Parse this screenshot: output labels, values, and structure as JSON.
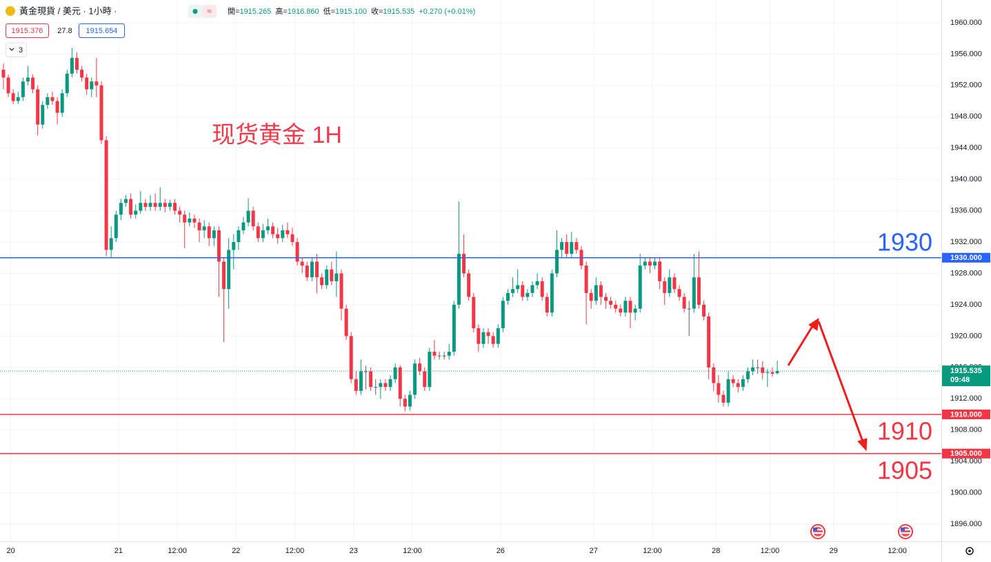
{
  "header": {
    "symbol": "黃金現貨 / 美元 · 1小時 ·",
    "ohlc": [
      {
        "label": "開=",
        "value": "1915.265"
      },
      {
        "label": "高=",
        "value": "1916.860"
      },
      {
        "label": "低=",
        "value": "1915.100"
      },
      {
        "label": "收=",
        "value": "1915.535"
      }
    ],
    "change": "+0.270 (+0.01%)",
    "bid": "1915.376",
    "spread": "27.8",
    "ask": "1915.654",
    "indicator_count": "3"
  },
  "chart_data": {
    "type": "candlestick",
    "annotation": "现货黄金 1H",
    "colors": {
      "up": "#089981",
      "down": "#f23645",
      "flat": "#5d606b"
    },
    "xlim": [
      -24.2,
      168
    ],
    "xticks": [
      {
        "value": -22,
        "label": "20"
      },
      {
        "value": 0,
        "label": "21"
      },
      {
        "value": 12,
        "label": "12:00"
      },
      {
        "value": 24,
        "label": "22"
      },
      {
        "value": 36,
        "label": "12:00"
      },
      {
        "value": 48,
        "label": "23"
      },
      {
        "value": 60,
        "label": "12:00"
      },
      {
        "value": 78,
        "label": "26"
      },
      {
        "value": 97,
        "label": "27"
      },
      {
        "value": 109,
        "label": "12:00"
      },
      {
        "value": 122,
        "label": "28"
      },
      {
        "value": 133,
        "label": "12:00"
      },
      {
        "value": 146,
        "label": "29"
      },
      {
        "value": 159,
        "label": "12:00"
      }
    ],
    "ylim": [
      1893.8,
      1962.9
    ],
    "yticks": [
      {
        "value": 1896,
        "label": "1896.000"
      },
      {
        "value": 1900,
        "label": "1900.000"
      },
      {
        "value": 1904,
        "label": "1904.000"
      },
      {
        "value": 1908,
        "label": "1908.000"
      },
      {
        "value": 1912,
        "label": "1912.000"
      },
      {
        "value": 1916,
        "label": "1916.000"
      },
      {
        "value": 1920,
        "label": "1920.000"
      },
      {
        "value": 1924,
        "label": "1924.000"
      },
      {
        "value": 1928,
        "label": "1928.000"
      },
      {
        "value": 1932,
        "label": "1932.000"
      },
      {
        "value": 1936,
        "label": "1936.000"
      },
      {
        "value": 1940,
        "label": "1940.000"
      },
      {
        "value": 1944,
        "label": "1944.000"
      },
      {
        "value": 1948,
        "label": "1948.000"
      },
      {
        "value": 1952,
        "label": "1952.000"
      },
      {
        "value": 1956,
        "label": "1956.000"
      },
      {
        "value": 1960,
        "label": "1960.000"
      }
    ],
    "grid": true,
    "hlines": [
      {
        "value": 1930,
        "label": "1930.000",
        "annotation": "1930",
        "color": "#2962ff"
      },
      {
        "value": 1910,
        "label": "1910.000",
        "annotation": "1910",
        "color": "#f23645"
      },
      {
        "value": 1905,
        "label": "1905.000",
        "annotation": "1905",
        "color": "#f23645"
      }
    ],
    "last_price": {
      "value": 1915.535,
      "label": "1915.535",
      "countdown": "09:48",
      "color": "#089981"
    },
    "x": [
      -23.5,
      -22.5,
      -21.5,
      -20.5,
      -19.5,
      -18.5,
      -17.5,
      -16.5,
      -15.5,
      -14.5,
      -13.5,
      -12.5,
      -11.5,
      -10.5,
      -9.5,
      -8.5,
      -7.5,
      -6.5,
      -5.5,
      -4.5,
      -3.5,
      -2.5,
      -1.5,
      -0.5,
      0.5,
      1.5,
      2.5,
      3.5,
      4.5,
      5.5,
      6.5,
      7.5,
      8.5,
      9.5,
      10.5,
      11.5,
      12.5,
      13.5,
      14.5,
      15.5,
      16.5,
      17.5,
      18.5,
      19.5,
      20.5,
      21.5,
      22.5,
      23.5,
      24.5,
      25.5,
      26.5,
      27.5,
      28.5,
      29.5,
      30.5,
      31.5,
      32.5,
      33.5,
      34.5,
      35.5,
      36.5,
      37.5,
      38.5,
      39.5,
      40.5,
      41.5,
      42.5,
      43.5,
      44.5,
      45.5,
      46.5,
      47.5,
      48.5,
      49.5,
      50.5,
      51.5,
      52.5,
      53.5,
      54.5,
      55.5,
      56.5,
      57.5,
      58.5,
      59.5,
      60.5,
      61.5,
      62.5,
      63.5,
      64.5,
      65.5,
      66.5,
      67.5,
      68.5,
      69.5,
      70.5,
      71.5,
      72.5,
      73.5,
      74.5,
      75.5,
      76.5,
      77.5,
      78.5,
      79.5,
      80.5,
      81.5,
      82.5,
      83.5,
      84.5,
      85.5,
      86.5,
      87.5,
      88.5,
      89.5,
      90.5,
      91.5,
      92.5,
      93.5,
      94.5,
      95.5,
      96.5,
      97.5,
      98.5,
      99.5,
      100.5,
      101.5,
      102.5,
      103.5,
      104.5,
      105.5,
      106.5,
      107.5,
      108.5,
      109.5,
      110.5,
      111.5,
      112.5,
      113.5,
      114.5,
      115.5,
      116.5,
      117.5,
      118.5,
      119.5,
      120.5,
      121.5,
      122.5,
      123.5,
      124.5,
      125.5,
      126.5,
      127.5,
      128.5,
      129.5,
      130.5,
      131.5,
      132.5,
      133.5,
      134.5
    ],
    "candles": [
      [
        1954.0,
        1954.8,
        1951.5,
        1953.0
      ],
      [
        1953.0,
        1953.4,
        1950.5,
        1951.0
      ],
      [
        1951.0,
        1951.5,
        1949.6,
        1950.0
      ],
      [
        1950.0,
        1951.2,
        1949.6,
        1950.5
      ],
      [
        1950.5,
        1953.0,
        1950.0,
        1952.5
      ],
      [
        1952.5,
        1954.5,
        1952.0,
        1953.0
      ],
      [
        1953.0,
        1953.4,
        1951.0,
        1951.5
      ],
      [
        1951.5,
        1952.0,
        1945.6,
        1947.0
      ],
      [
        1947.0,
        1950.0,
        1946.5,
        1949.5
      ],
      [
        1949.5,
        1951.0,
        1949.0,
        1950.5
      ],
      [
        1950.5,
        1951.2,
        1949.5,
        1950.0
      ],
      [
        1950.0,
        1950.5,
        1947.0,
        1948.5
      ],
      [
        1948.5,
        1951.5,
        1948.0,
        1951.0
      ],
      [
        1951.0,
        1954.0,
        1950.5,
        1953.5
      ],
      [
        1953.5,
        1956.8,
        1953.0,
        1955.5
      ],
      [
        1955.5,
        1956.2,
        1953.5,
        1954.0
      ],
      [
        1954.0,
        1954.5,
        1952.5,
        1953.0
      ],
      [
        1953.0,
        1953.5,
        1950.8,
        1951.5
      ],
      [
        1951.5,
        1953.0,
        1950.5,
        1952.5
      ],
      [
        1952.5,
        1955.5,
        1950.5,
        1952.0
      ],
      [
        1952.0,
        1952.5,
        1944.5,
        1945.0
      ],
      [
        1945.0,
        1945.5,
        1930.2,
        1931.0
      ],
      [
        1931.0,
        1934.0,
        1930.0,
        1932.5
      ],
      [
        1932.5,
        1936.0,
        1932.0,
        1935.5
      ],
      [
        1935.5,
        1937.5,
        1934.8,
        1937.0
      ],
      [
        1937.0,
        1938.0,
        1936.5,
        1937.5
      ],
      [
        1937.5,
        1938.2,
        1935.0,
        1935.5
      ],
      [
        1935.5,
        1936.8,
        1935.0,
        1936.0
      ],
      [
        1936.0,
        1938.5,
        1935.6,
        1937.0
      ],
      [
        1937.0,
        1937.5,
        1936.0,
        1936.5
      ],
      [
        1936.5,
        1938.0,
        1936.0,
        1937.0
      ],
      [
        1937.0,
        1938.2,
        1936.0,
        1936.5
      ],
      [
        1936.5,
        1939.0,
        1936.0,
        1937.0
      ],
      [
        1937.0,
        1937.5,
        1935.8,
        1936.5
      ],
      [
        1936.5,
        1937.4,
        1936.0,
        1937.0
      ],
      [
        1937.0,
        1937.5,
        1935.5,
        1936.0
      ],
      [
        1936.0,
        1936.5,
        1934.5,
        1935.5
      ],
      [
        1935.5,
        1936.0,
        1931.2,
        1934.5
      ],
      [
        1934.5,
        1935.8,
        1934.0,
        1935.0
      ],
      [
        1935.0,
        1935.5,
        1933.8,
        1934.5
      ],
      [
        1934.5,
        1935.0,
        1932.0,
        1933.5
      ],
      [
        1933.5,
        1934.8,
        1932.5,
        1934.0
      ],
      [
        1934.0,
        1934.5,
        1931.5,
        1932.5
      ],
      [
        1932.5,
        1934.0,
        1931.5,
        1933.5
      ],
      [
        1933.5,
        1934.0,
        1925.0,
        1929.5
      ],
      [
        1929.5,
        1930.0,
        1919.2,
        1926.0
      ],
      [
        1926.0,
        1932.5,
        1923.5,
        1931.0
      ],
      [
        1931.0,
        1933.0,
        1928.5,
        1932.0
      ],
      [
        1932.0,
        1934.0,
        1931.0,
        1933.5
      ],
      [
        1933.5,
        1935.2,
        1933.0,
        1934.5
      ],
      [
        1934.5,
        1937.6,
        1934.0,
        1936.0
      ],
      [
        1936.0,
        1936.5,
        1933.5,
        1934.0
      ],
      [
        1934.0,
        1934.5,
        1932.0,
        1932.5
      ],
      [
        1932.5,
        1934.3,
        1932.0,
        1933.5
      ],
      [
        1933.5,
        1935.0,
        1933.0,
        1934.0
      ],
      [
        1934.0,
        1934.5,
        1932.5,
        1933.0
      ],
      [
        1933.0,
        1933.8,
        1931.8,
        1932.5
      ],
      [
        1932.5,
        1934.2,
        1932.0,
        1933.5
      ],
      [
        1933.5,
        1934.5,
        1932.5,
        1933.0
      ],
      [
        1933.0,
        1933.8,
        1931.5,
        1932.0
      ],
      [
        1932.0,
        1932.5,
        1929.0,
        1929.5
      ],
      [
        1929.5,
        1930.0,
        1928.0,
        1929.0
      ],
      [
        1929.0,
        1929.5,
        1927.0,
        1927.5
      ],
      [
        1927.5,
        1930.0,
        1927.0,
        1929.5
      ],
      [
        1929.5,
        1930.5,
        1925.5,
        1927.5
      ],
      [
        1927.5,
        1928.0,
        1926.0,
        1926.5
      ],
      [
        1926.5,
        1929.0,
        1926.0,
        1928.5
      ],
      [
        1928.5,
        1929.5,
        1926.5,
        1927.0
      ],
      [
        1927.0,
        1930.8,
        1925.0,
        1928.0
      ],
      [
        1928.0,
        1928.5,
        1922.0,
        1923.5
      ],
      [
        1923.5,
        1924.0,
        1919.5,
        1920.0
      ],
      [
        1920.0,
        1920.5,
        1914.0,
        1914.5
      ],
      [
        1914.5,
        1915.5,
        1912.5,
        1913.0
      ],
      [
        1913.0,
        1917.0,
        1912.5,
        1915.5
      ],
      [
        1915.5,
        1916.2,
        1913.2,
        1915.5
      ],
      [
        1915.5,
        1916.0,
        1913.0,
        1913.5
      ],
      [
        1913.5,
        1914.5,
        1912.5,
        1913.5
      ],
      [
        1913.5,
        1914.5,
        1912.0,
        1914.0
      ],
      [
        1914.0,
        1914.5,
        1913.0,
        1913.5
      ],
      [
        1913.5,
        1915.0,
        1913.0,
        1914.5
      ],
      [
        1914.5,
        1916.5,
        1914.0,
        1916.0
      ],
      [
        1916.0,
        1916.3,
        1911.0,
        1912.0
      ],
      [
        1912.0,
        1912.5,
        1910.4,
        1911.0
      ],
      [
        1911.0,
        1913.0,
        1910.5,
        1912.5
      ],
      [
        1912.5,
        1917.0,
        1912.0,
        1916.5
      ],
      [
        1916.5,
        1917.2,
        1915.0,
        1915.5
      ],
      [
        1915.5,
        1916.0,
        1913.0,
        1913.5
      ],
      [
        1913.5,
        1918.5,
        1913.0,
        1918.0
      ],
      [
        1918.0,
        1919.5,
        1917.0,
        1917.5
      ],
      [
        1917.5,
        1918.0,
        1917.0,
        1917.5
      ],
      [
        1917.5,
        1918.0,
        1917.0,
        1917.5
      ],
      [
        1917.5,
        1919.0,
        1917.0,
        1918.0
      ],
      [
        1918.0,
        1924.5,
        1917.5,
        1924.0
      ],
      [
        1924.0,
        1937.2,
        1923.5,
        1930.5
      ],
      [
        1930.5,
        1933.0,
        1927.5,
        1928.0
      ],
      [
        1928.0,
        1928.5,
        1924.5,
        1925.0
      ],
      [
        1925.0,
        1925.5,
        1920.5,
        1921.0
      ],
      [
        1921.0,
        1921.5,
        1918.0,
        1919.0
      ],
      [
        1919.0,
        1921.0,
        1918.5,
        1920.5
      ],
      [
        1920.5,
        1921.0,
        1919.0,
        1920.0
      ],
      [
        1920.0,
        1920.5,
        1918.5,
        1919.0
      ],
      [
        1919.0,
        1921.5,
        1918.5,
        1921.0
      ],
      [
        1921.0,
        1925.0,
        1920.5,
        1924.5
      ],
      [
        1924.5,
        1926.0,
        1924.0,
        1925.5
      ],
      [
        1925.5,
        1927.5,
        1925.0,
        1926.0
      ],
      [
        1926.0,
        1928.5,
        1925.5,
        1926.5
      ],
      [
        1926.5,
        1927.0,
        1924.5,
        1925.0
      ],
      [
        1925.0,
        1926.0,
        1924.5,
        1925.5
      ],
      [
        1925.5,
        1927.0,
        1925.0,
        1926.5
      ],
      [
        1926.5,
        1928.0,
        1926.0,
        1927.0
      ],
      [
        1927.0,
        1927.5,
        1924.5,
        1925.0
      ],
      [
        1925.0,
        1925.5,
        1922.5,
        1923.0
      ],
      [
        1923.0,
        1928.5,
        1922.5,
        1928.0
      ],
      [
        1928.0,
        1933.5,
        1927.5,
        1931.0
      ],
      [
        1931.0,
        1932.5,
        1930.0,
        1932.0
      ],
      [
        1932.0,
        1933.0,
        1930.0,
        1930.5
      ],
      [
        1930.5,
        1933.3,
        1930.0,
        1932.0
      ],
      [
        1932.0,
        1932.5,
        1930.5,
        1931.0
      ],
      [
        1931.0,
        1931.5,
        1928.5,
        1929.0
      ],
      [
        1929.0,
        1929.5,
        1921.5,
        1925.5
      ],
      [
        1925.5,
        1926.0,
        1923.5,
        1924.5
      ],
      [
        1924.5,
        1927.5,
        1924.0,
        1926.5
      ],
      [
        1926.5,
        1927.0,
        1924.0,
        1925.0
      ],
      [
        1925.0,
        1925.5,
        1923.5,
        1924.5
      ],
      [
        1924.5,
        1925.0,
        1923.5,
        1924.0
      ],
      [
        1924.0,
        1924.5,
        1923.0,
        1923.5
      ],
      [
        1923.5,
        1924.0,
        1922.5,
        1923.0
      ],
      [
        1923.0,
        1925.0,
        1922.5,
        1924.5
      ],
      [
        1924.5,
        1925.0,
        1921.0,
        1923.0
      ],
      [
        1923.0,
        1924.0,
        1922.0,
        1923.5
      ],
      [
        1923.5,
        1930.5,
        1923.0,
        1929.0
      ],
      [
        1929.0,
        1930.0,
        1928.5,
        1929.5
      ],
      [
        1929.5,
        1930.0,
        1928.0,
        1929.0
      ],
      [
        1929.0,
        1930.0,
        1928.5,
        1929.5
      ],
      [
        1929.5,
        1930.0,
        1926.0,
        1927.0
      ],
      [
        1927.0,
        1927.5,
        1924.0,
        1925.5
      ],
      [
        1925.5,
        1928.5,
        1925.0,
        1927.5
      ],
      [
        1927.5,
        1928.0,
        1925.5,
        1926.0
      ],
      [
        1926.0,
        1926.5,
        1924.5,
        1925.0
      ],
      [
        1925.0,
        1925.5,
        1923.0,
        1923.5
      ],
      [
        1923.5,
        1924.5,
        1920.0,
        1923.5
      ],
      [
        1923.5,
        1930.5,
        1923.0,
        1927.5
      ],
      [
        1927.5,
        1930.8,
        1923.5,
        1924.0
      ],
      [
        1924.0,
        1924.5,
        1922.0,
        1922.5
      ],
      [
        1922.5,
        1923.0,
        1914.5,
        1916.0
      ],
      [
        1916.0,
        1916.5,
        1913.0,
        1914.0
      ],
      [
        1914.0,
        1915.0,
        1911.5,
        1912.5
      ],
      [
        1912.5,
        1913.0,
        1911.0,
        1911.5
      ],
      [
        1911.5,
        1915.5,
        1911.0,
        1914.5
      ],
      [
        1914.5,
        1915.0,
        1913.5,
        1914.0
      ],
      [
        1914.0,
        1914.5,
        1912.8,
        1913.5
      ],
      [
        1913.5,
        1915.0,
        1913.0,
        1914.5
      ],
      [
        1914.5,
        1916.0,
        1914.0,
        1915.5
      ],
      [
        1915.5,
        1917.0,
        1915.0,
        1916.0
      ],
      [
        1916.0,
        1917.0,
        1915.2,
        1916.0
      ],
      [
        1916.0,
        1916.8,
        1914.5,
        1915.3
      ],
      [
        1915.3,
        1915.8,
        1913.5,
        1915.4
      ],
      [
        1915.4,
        1916.0,
        1914.8,
        1915.2
      ],
      [
        1915.265,
        1916.86,
        1915.1,
        1915.535
      ]
    ]
  }
}
